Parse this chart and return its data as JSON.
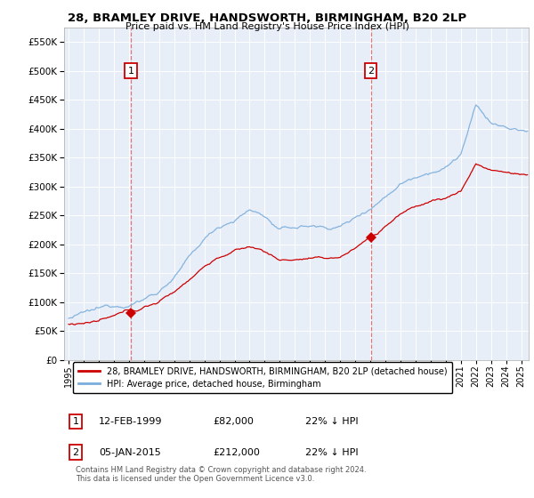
{
  "title": "28, BRAMLEY DRIVE, HANDSWORTH, BIRMINGHAM, B20 2LP",
  "subtitle": "Price paid vs. HM Land Registry's House Price Index (HPI)",
  "legend_property": "28, BRAMLEY DRIVE, HANDSWORTH, BIRMINGHAM, B20 2LP (detached house)",
  "legend_hpi": "HPI: Average price, detached house, Birmingham",
  "transactions": [
    {
      "num": 1,
      "date": "12-FEB-1999",
      "price": 82000,
      "pct": "22% ↓ HPI",
      "year_dec": 1999.12
    },
    {
      "num": 2,
      "date": "05-JAN-2015",
      "price": 212000,
      "pct": "22% ↓ HPI",
      "year_dec": 2015.04
    }
  ],
  "copyright": "Contains HM Land Registry data © Crown copyright and database right 2024.\nThis data is licensed under the Open Government Licence v3.0.",
  "property_color": "#cc0000",
  "hpi_color": "#7aaddb",
  "vline_color": "#e06060",
  "background_color": "#e8eef8",
  "ylim": [
    0,
    575000
  ],
  "yticks": [
    0,
    50000,
    100000,
    150000,
    200000,
    250000,
    300000,
    350000,
    400000,
    450000,
    500000,
    550000
  ],
  "xlim_start": 1994.7,
  "xlim_end": 2025.5
}
